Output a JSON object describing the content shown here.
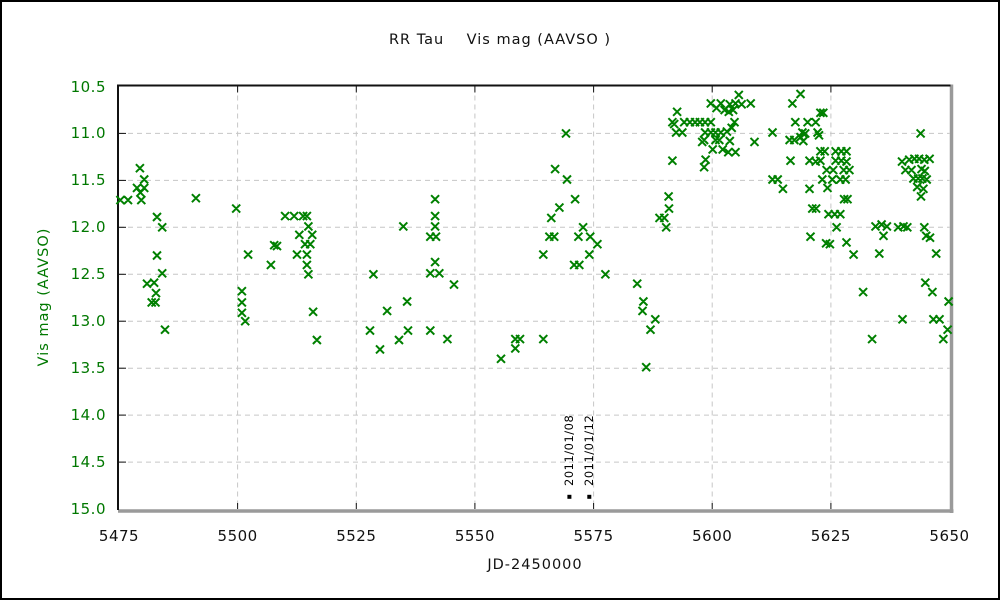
{
  "colors": {
    "marker": "#008000",
    "axis_green": "#007800",
    "grid": "#c6c6c6",
    "frame_dark": "#111111",
    "frame_shadow": "#9a9a9a",
    "text": "#111111",
    "annotation": "#000000"
  },
  "chart_data": {
    "type": "scatter",
    "title": "RR Tau    Vis mag (AAVSO )",
    "xlabel": "JD-2450000",
    "ylabel": "Vis mag (AAVSO)",
    "marker": "x",
    "grid": true,
    "y_axis_inverted": true,
    "xlim": [
      5475,
      5650
    ],
    "ylim": [
      10.5,
      15.0
    ],
    "x_ticks": [
      5475,
      5500,
      5525,
      5550,
      5575,
      5600,
      5625,
      5650
    ],
    "y_ticks": [
      10.5,
      11.0,
      11.5,
      12.0,
      12.5,
      13.0,
      13.5,
      14.0,
      14.5,
      15.0
    ],
    "series": [
      {
        "name": "Vis mag (AAVSO)",
        "points": [
          [
            5475.3,
            11.71
          ],
          [
            5476.9,
            11.71
          ],
          [
            5479.7,
            11.71
          ],
          [
            5479.4,
            11.37
          ],
          [
            5480.3,
            11.49
          ],
          [
            5478.8,
            11.58
          ],
          [
            5480.3,
            11.58
          ],
          [
            5479.5,
            11.63
          ],
          [
            5483.0,
            11.89
          ],
          [
            5484.1,
            12.0
          ],
          [
            5483.0,
            12.3
          ],
          [
            5484.1,
            12.49
          ],
          [
            5480.9,
            12.6
          ],
          [
            5482.4,
            12.59
          ],
          [
            5482.8,
            12.7
          ],
          [
            5481.9,
            12.8
          ],
          [
            5482.7,
            12.8
          ],
          [
            5484.7,
            13.09
          ],
          [
            5491.2,
            11.69
          ],
          [
            5499.7,
            11.8
          ],
          [
            5502.2,
            12.29
          ],
          [
            5500.9,
            12.68
          ],
          [
            5500.9,
            12.8
          ],
          [
            5500.9,
            12.91
          ],
          [
            5501.6,
            13.0
          ],
          [
            5507.7,
            12.19
          ],
          [
            5508.3,
            12.2
          ],
          [
            5507.0,
            12.4
          ],
          [
            5510.0,
            11.88
          ],
          [
            5511.9,
            11.88
          ],
          [
            5513.8,
            11.88
          ],
          [
            5514.6,
            11.88
          ],
          [
            5514.9,
            11.99
          ],
          [
            5513.0,
            12.08
          ],
          [
            5515.7,
            12.08
          ],
          [
            5514.2,
            12.18
          ],
          [
            5515.3,
            12.18
          ],
          [
            5512.5,
            12.29
          ],
          [
            5514.6,
            12.29
          ],
          [
            5514.6,
            12.4
          ],
          [
            5514.9,
            12.5
          ],
          [
            5515.9,
            12.9
          ],
          [
            5516.7,
            13.2
          ],
          [
            5528.6,
            12.5
          ],
          [
            5527.9,
            13.1
          ],
          [
            5530.0,
            13.3
          ],
          [
            5531.5,
            12.89
          ],
          [
            5534.9,
            11.99
          ],
          [
            5535.7,
            12.79
          ],
          [
            5534.0,
            13.2
          ],
          [
            5535.9,
            13.1
          ],
          [
            5540.6,
            12.1
          ],
          [
            5541.8,
            12.1
          ],
          [
            5541.6,
            11.7
          ],
          [
            5541.6,
            11.88
          ],
          [
            5541.6,
            11.99
          ],
          [
            5541.6,
            12.37
          ],
          [
            5540.6,
            12.49
          ],
          [
            5542.5,
            12.49
          ],
          [
            5540.6,
            13.1
          ],
          [
            5544.2,
            13.19
          ],
          [
            5545.6,
            12.61
          ],
          [
            5555.5,
            13.4
          ],
          [
            5558.5,
            13.19
          ],
          [
            5559.5,
            13.19
          ],
          [
            5558.5,
            13.29
          ],
          [
            5564.4,
            12.29
          ],
          [
            5564.4,
            13.19
          ],
          [
            5565.7,
            12.1
          ],
          [
            5566.7,
            12.1
          ],
          [
            5566.1,
            11.9
          ],
          [
            5566.9,
            11.38
          ],
          [
            5567.8,
            11.79
          ],
          [
            5569.2,
            11.0
          ],
          [
            5569.4,
            11.49
          ],
          [
            5571.1,
            11.7
          ],
          [
            5570.9,
            12.4
          ],
          [
            5572.0,
            12.4
          ],
          [
            5571.8,
            12.1
          ],
          [
            5574.3,
            12.1
          ],
          [
            5572.8,
            12.0
          ],
          [
            5574.1,
            12.29
          ],
          [
            5575.8,
            12.18
          ],
          [
            5577.5,
            12.5
          ],
          [
            5584.2,
            12.6
          ],
          [
            5585.5,
            12.79
          ],
          [
            5585.3,
            12.89
          ],
          [
            5587.0,
            13.09
          ],
          [
            5588.0,
            12.98
          ],
          [
            5586.1,
            13.49
          ],
          [
            5588.9,
            11.9
          ],
          [
            5589.9,
            11.9
          ],
          [
            5590.3,
            12.0
          ],
          [
            5590.8,
            11.67
          ],
          [
            5590.9,
            11.8
          ],
          [
            5591.6,
            11.29
          ],
          [
            5591.6,
            10.88
          ],
          [
            5592.0,
            10.9
          ],
          [
            5592.6,
            10.77
          ],
          [
            5592.4,
            10.99
          ],
          [
            5593.7,
            10.99
          ],
          [
            5594.1,
            10.88
          ],
          [
            5595.3,
            10.88
          ],
          [
            5596.4,
            10.88
          ],
          [
            5597.4,
            10.88
          ],
          [
            5598.5,
            10.88
          ],
          [
            5599.7,
            10.88
          ],
          [
            5604.7,
            10.88
          ],
          [
            5599.7,
            10.68
          ],
          [
            5601.8,
            10.68
          ],
          [
            5603.7,
            10.69
          ],
          [
            5604.9,
            10.68
          ],
          [
            5606.2,
            10.69
          ],
          [
            5608.1,
            10.68
          ],
          [
            5605.6,
            10.59
          ],
          [
            5600.9,
            10.73
          ],
          [
            5602.6,
            10.75
          ],
          [
            5603.5,
            10.77
          ],
          [
            5604.4,
            10.75
          ],
          [
            5598.5,
            10.99
          ],
          [
            5599.7,
            10.99
          ],
          [
            5600.7,
            10.99
          ],
          [
            5601.8,
            10.99
          ],
          [
            5603.1,
            10.98
          ],
          [
            5604.1,
            10.94
          ],
          [
            5598.3,
            11.07
          ],
          [
            5600.7,
            11.07
          ],
          [
            5601.5,
            11.07
          ],
          [
            5603.7,
            11.08
          ],
          [
            5597.9,
            11.09
          ],
          [
            5608.9,
            11.09
          ],
          [
            5600.1,
            11.17
          ],
          [
            5602.2,
            11.17
          ],
          [
            5603.4,
            11.2
          ],
          [
            5604.9,
            11.2
          ],
          [
            5598.6,
            11.28
          ],
          [
            5598.3,
            11.36
          ],
          [
            5612.7,
            10.99
          ],
          [
            5616.9,
            10.68
          ],
          [
            5618.6,
            10.58
          ],
          [
            5617.5,
            10.88
          ],
          [
            5620.1,
            10.88
          ],
          [
            5621.8,
            10.88
          ],
          [
            5619.0,
            10.99
          ],
          [
            5619.6,
            11.0
          ],
          [
            5622.2,
            10.99
          ],
          [
            5622.8,
            10.78
          ],
          [
            5623.4,
            10.78
          ],
          [
            5616.3,
            11.07
          ],
          [
            5617.3,
            11.07
          ],
          [
            5618.6,
            11.04
          ],
          [
            5619.2,
            11.08
          ],
          [
            5622.5,
            11.02
          ],
          [
            5616.5,
            11.29
          ],
          [
            5620.5,
            11.29
          ],
          [
            5621.8,
            11.3
          ],
          [
            5622.8,
            11.29
          ],
          [
            5626.0,
            11.29
          ],
          [
            5627.2,
            11.29
          ],
          [
            5628.3,
            11.3
          ],
          [
            5622.8,
            11.19
          ],
          [
            5623.7,
            11.19
          ],
          [
            5626.0,
            11.19
          ],
          [
            5627.2,
            11.19
          ],
          [
            5628.3,
            11.19
          ],
          [
            5612.7,
            11.49
          ],
          [
            5613.8,
            11.49
          ],
          [
            5614.9,
            11.59
          ],
          [
            5620.5,
            11.59
          ],
          [
            5624.1,
            11.39
          ],
          [
            5625.5,
            11.39
          ],
          [
            5627.7,
            11.39
          ],
          [
            5628.9,
            11.39
          ],
          [
            5623.2,
            11.49
          ],
          [
            5625.3,
            11.49
          ],
          [
            5627.0,
            11.49
          ],
          [
            5628.1,
            11.49
          ],
          [
            5624.3,
            11.58
          ],
          [
            5627.8,
            11.7
          ],
          [
            5628.5,
            11.7
          ],
          [
            5621.1,
            11.8
          ],
          [
            5621.9,
            11.8
          ],
          [
            5624.5,
            11.86
          ],
          [
            5625.8,
            11.86
          ],
          [
            5627.0,
            11.86
          ],
          [
            5626.2,
            12.0
          ],
          [
            5620.7,
            12.1
          ],
          [
            5624.0,
            12.17
          ],
          [
            5624.8,
            12.18
          ],
          [
            5628.3,
            12.16
          ],
          [
            5629.8,
            12.29
          ],
          [
            5631.8,
            12.69
          ],
          [
            5633.7,
            13.19
          ],
          [
            5635.2,
            12.28
          ],
          [
            5634.4,
            11.99
          ],
          [
            5635.7,
            11.97
          ],
          [
            5636.8,
            11.99
          ],
          [
            5636.1,
            12.09
          ],
          [
            5639.2,
            12.0
          ],
          [
            5640.3,
            11.99
          ],
          [
            5641.1,
            12.0
          ],
          [
            5644.7,
            12.0
          ],
          [
            5645.1,
            12.09
          ],
          [
            5645.9,
            12.11
          ],
          [
            5647.2,
            12.28
          ],
          [
            5640.0,
            11.3
          ],
          [
            5641.5,
            11.28
          ],
          [
            5642.6,
            11.27
          ],
          [
            5643.6,
            11.27
          ],
          [
            5644.7,
            11.28
          ],
          [
            5645.8,
            11.27
          ],
          [
            5640.7,
            11.39
          ],
          [
            5642.0,
            11.39
          ],
          [
            5644.1,
            11.38
          ],
          [
            5644.8,
            11.4
          ],
          [
            5642.4,
            11.48
          ],
          [
            5643.4,
            11.48
          ],
          [
            5644.3,
            11.48
          ],
          [
            5645.2,
            11.49
          ],
          [
            5643.2,
            11.57
          ],
          [
            5644.5,
            11.59
          ],
          [
            5644.0,
            11.67
          ],
          [
            5643.9,
            11.0
          ],
          [
            5644.9,
            12.59
          ],
          [
            5646.4,
            12.69
          ],
          [
            5649.8,
            12.79
          ],
          [
            5640.1,
            12.98
          ],
          [
            5646.6,
            12.98
          ],
          [
            5647.9,
            12.98
          ],
          [
            5649.6,
            13.09
          ],
          [
            5648.7,
            13.19
          ]
        ]
      }
    ],
    "annotations": [
      {
        "label": "2011/01/08",
        "x": 5569.9,
        "y": 14.87,
        "marker": "filled-square"
      },
      {
        "label": "2011/01/12",
        "x": 5574.1,
        "y": 14.87,
        "marker": "filled-square"
      }
    ]
  }
}
